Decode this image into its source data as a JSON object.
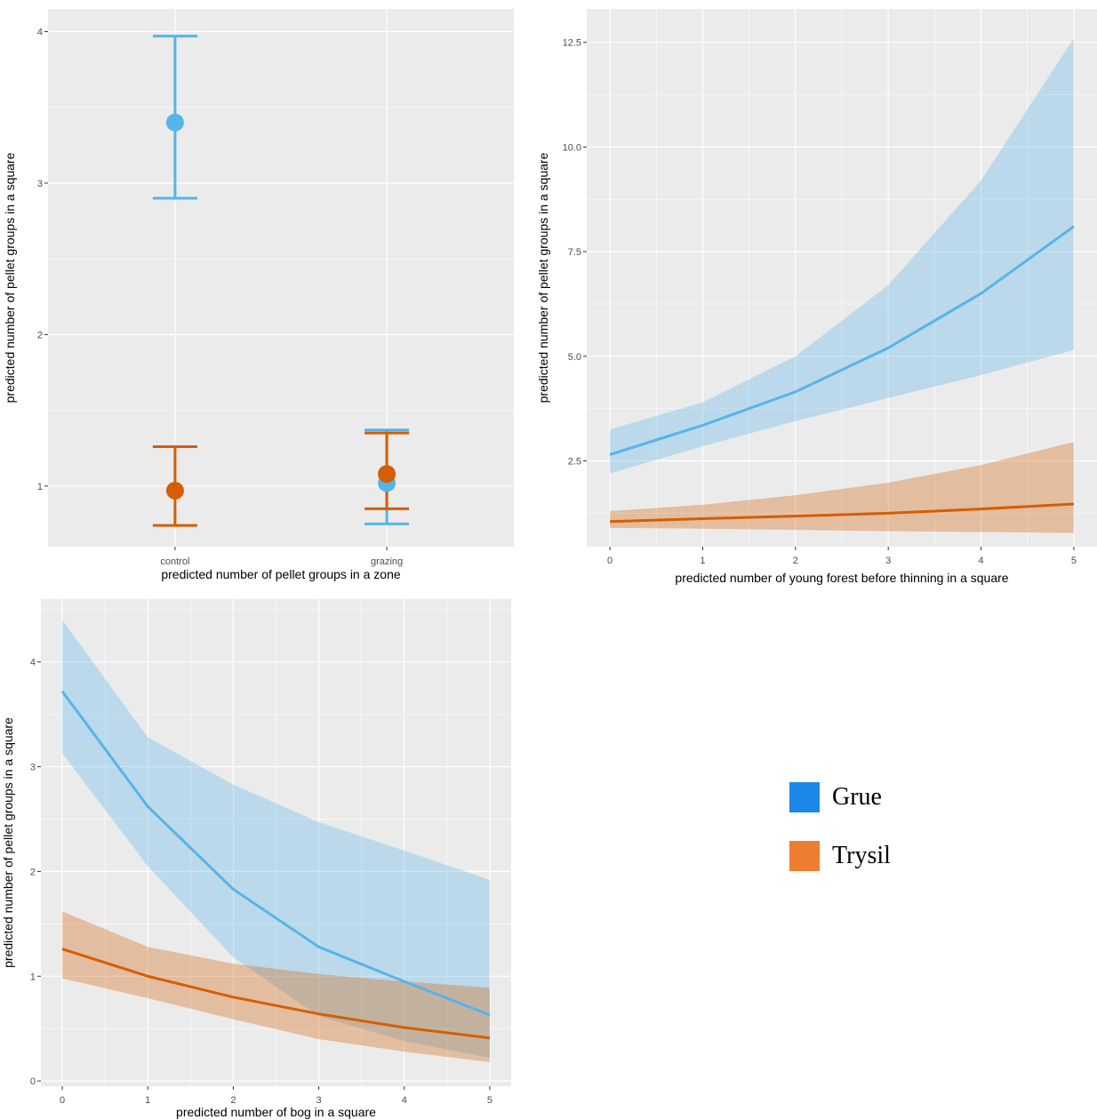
{
  "legend": {
    "items": [
      {
        "label": "Grue",
        "color": "#1B87E6"
      },
      {
        "label": "Trysil",
        "color": "#ED7D31"
      }
    ]
  },
  "colors": {
    "panel_bg": "#EBEBEB",
    "grid": "#FFFFFF",
    "grue": "#56B4E9",
    "trysil": "#D55E00"
  },
  "chart_data": [
    {
      "type": "scatter",
      "subtype": "point-errorbar",
      "title": "",
      "xlabel": "predicted number of pellet groups in a zone",
      "ylabel": "predicted number of pellet groups in a square",
      "categories": [
        "control",
        "grazing"
      ],
      "yticks": [
        "1",
        "2",
        "3",
        "4"
      ],
      "ylim": [
        0.6,
        4.15
      ],
      "series": [
        {
          "name": "Grue",
          "values": [
            3.4,
            1.02
          ],
          "lower": [
            2.9,
            0.75
          ],
          "upper": [
            3.97,
            1.37
          ]
        },
        {
          "name": "Trysil",
          "values": [
            0.97,
            1.08
          ],
          "lower": [
            0.74,
            0.85
          ],
          "upper": [
            1.26,
            1.35
          ]
        }
      ]
    },
    {
      "type": "line",
      "subtype": "ribbon",
      "title": "",
      "xlabel": "predicted number of young forest before thinning in a square",
      "ylabel": "predicted number of pellet groups in a square",
      "x": [
        0,
        1,
        2,
        3,
        4,
        5
      ],
      "xticks": [
        "0",
        "1",
        "2",
        "3",
        "4",
        "5"
      ],
      "yticks": [
        "2.5",
        "5.0",
        "7.5",
        "10.0",
        "12.5"
      ],
      "xlim": [
        -0.25,
        5.25
      ],
      "ylim": [
        0.45,
        13.3
      ],
      "series": [
        {
          "name": "Grue",
          "values": [
            2.65,
            3.35,
            4.15,
            5.2,
            6.5,
            8.1
          ],
          "lower": [
            2.2,
            2.85,
            3.45,
            4.0,
            4.55,
            5.15
          ],
          "upper": [
            3.25,
            3.9,
            5.0,
            6.7,
            9.2,
            12.6
          ]
        },
        {
          "name": "Trysil",
          "values": [
            1.05,
            1.12,
            1.18,
            1.25,
            1.35,
            1.47
          ],
          "lower": [
            0.9,
            0.88,
            0.85,
            0.82,
            0.8,
            0.78
          ],
          "upper": [
            1.3,
            1.45,
            1.68,
            1.98,
            2.4,
            2.95
          ]
        }
      ]
    },
    {
      "type": "line",
      "subtype": "ribbon",
      "title": "",
      "xlabel": "predicted number of bog in a square",
      "ylabel": "predicted number of pellet groups in a square",
      "x": [
        0,
        1,
        2,
        3,
        4,
        5
      ],
      "xticks": [
        "0",
        "1",
        "2",
        "3",
        "4",
        "5"
      ],
      "yticks": [
        "0",
        "1",
        "2",
        "3",
        "4"
      ],
      "xlim": [
        -0.25,
        5.25
      ],
      "ylim": [
        -0.05,
        4.6
      ],
      "series": [
        {
          "name": "Grue",
          "values": [
            3.72,
            2.62,
            1.83,
            1.28,
            0.95,
            0.63
          ],
          "lower": [
            3.13,
            2.05,
            1.18,
            0.62,
            0.38,
            0.22
          ],
          "upper": [
            4.4,
            3.28,
            2.83,
            2.47,
            2.2,
            1.92
          ]
        },
        {
          "name": "Trysil",
          "values": [
            1.26,
            1.0,
            0.8,
            0.64,
            0.51,
            0.41
          ],
          "lower": [
            0.98,
            0.79,
            0.59,
            0.4,
            0.28,
            0.18
          ],
          "upper": [
            1.62,
            1.28,
            1.12,
            1.02,
            0.95,
            0.89
          ]
        }
      ]
    }
  ]
}
